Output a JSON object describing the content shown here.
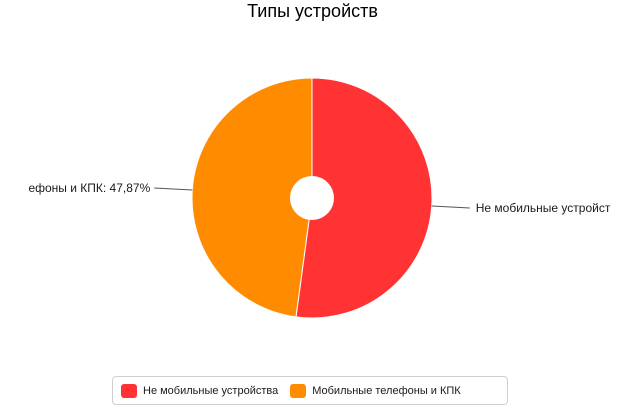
{
  "chart_data": {
    "type": "pie",
    "title": "Типы устройств",
    "categories": [
      "Не мобильные устройства",
      "Мобильные телефоны и КПК"
    ],
    "values": [
      52.13,
      47.87
    ],
    "unit": "%",
    "colors": [
      "#ff3333",
      "#ff8c00"
    ],
    "slice_labels": {
      "left_visible": "ефоны и КПК: 47,87%",
      "right_visible": "Не мобильные устройст"
    },
    "donut": true,
    "legend": {
      "placement": "bottom",
      "items": [
        {
          "label": "Не мобильные устройства",
          "color": "#ff3333"
        },
        {
          "label": "Мобильные телефоны и КПК",
          "color": "#ff8c00"
        }
      ]
    }
  }
}
